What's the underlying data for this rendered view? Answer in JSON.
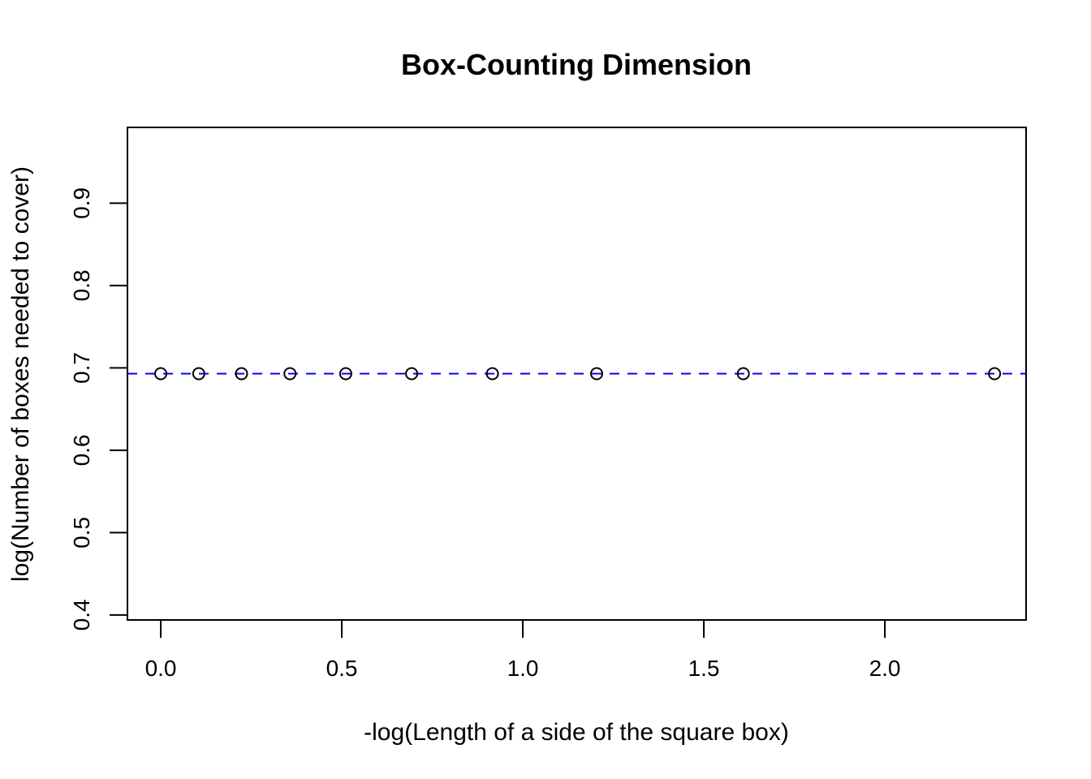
{
  "chart_data": {
    "type": "scatter",
    "title": "Box-Counting Dimension",
    "xlabel": "-log(Length of a side of the square box)",
    "ylabel": "log(Number of boxes needed to cover)",
    "xlim": [
      -0.092,
      2.39
    ],
    "ylim": [
      0.394,
      0.992
    ],
    "xticks": [
      0.0,
      0.5,
      1.0,
      1.5,
      2.0
    ],
    "xtick_labels": [
      "0.0",
      "0.5",
      "1.0",
      "1.5",
      "2.0"
    ],
    "yticks": [
      0.4,
      0.5,
      0.6,
      0.7,
      0.8,
      0.9
    ],
    "ytick_labels": [
      "0.4",
      "0.5",
      "0.6",
      "0.7",
      "0.8",
      "0.9"
    ],
    "grid": false,
    "points": {
      "x": [
        0.0,
        0.105,
        0.223,
        0.357,
        0.511,
        0.693,
        0.916,
        1.204,
        1.609,
        2.303
      ],
      "y": [
        0.693,
        0.693,
        0.693,
        0.693,
        0.693,
        0.693,
        0.693,
        0.693,
        0.693,
        0.693
      ],
      "marker": "open-circle",
      "color": "#000000"
    },
    "fit_line": {
      "intercept": 0.693,
      "slope": 0,
      "style": "dashed",
      "color": "#0000ff"
    }
  }
}
